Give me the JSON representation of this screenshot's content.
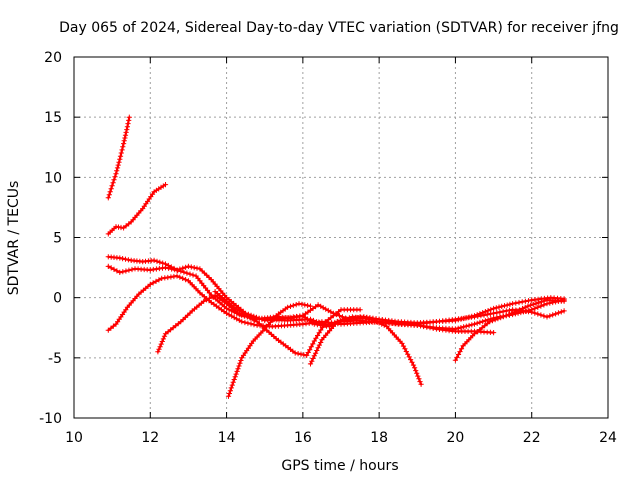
{
  "chart_data": {
    "type": "scatter",
    "title": "Day 065 of 2024, Sidereal Day-to-day VTEC variation (SDTVAR) for receiver jfng",
    "xlabel": "GPS time / hours",
    "ylabel": "SDTVAR / TECUs",
    "xlim": [
      10,
      24
    ],
    "ylim": [
      -10,
      20
    ],
    "xticks": [
      10,
      12,
      14,
      16,
      18,
      20,
      22,
      24
    ],
    "yticks": [
      -10,
      -5,
      0,
      5,
      10,
      15,
      20
    ],
    "grid": true,
    "marker": "+",
    "color": "#ff0000",
    "series": [
      {
        "name": "s1",
        "x": [
          10.9,
          11.0,
          11.1,
          11.2,
          11.3,
          11.4,
          11.45
        ],
        "y": [
          8.3,
          9.3,
          10.3,
          11.5,
          12.8,
          14.2,
          15.0
        ]
      },
      {
        "name": "s2",
        "x": [
          10.9,
          11.1,
          11.3,
          11.5,
          11.8,
          12.1,
          12.4
        ],
        "y": [
          5.3,
          5.9,
          5.8,
          6.3,
          7.4,
          8.8,
          9.4
        ]
      },
      {
        "name": "s3",
        "x": [
          10.9,
          11.2,
          11.5,
          11.8,
          12.1,
          12.4,
          12.7,
          13.0,
          13.3,
          13.6,
          14.0,
          14.5,
          15.0,
          15.5,
          16.0,
          16.4,
          16.8,
          17.2,
          17.6,
          18.0,
          18.5,
          19.0,
          19.5,
          20.0,
          20.5,
          21.0,
          21.5,
          22.0,
          22.5,
          22.85
        ],
        "y": [
          3.4,
          3.3,
          3.1,
          3.0,
          3.1,
          2.8,
          2.3,
          2.6,
          2.4,
          1.5,
          0.0,
          -1.3,
          -1.9,
          -1.7,
          -1.5,
          -0.6,
          -1.3,
          -1.8,
          -1.6,
          -1.8,
          -2.0,
          -2.1,
          -2.0,
          -1.9,
          -1.5,
          -0.9,
          -0.5,
          -0.2,
          0.0,
          -0.1
        ]
      },
      {
        "name": "s4",
        "x": [
          10.9,
          11.2,
          11.6,
          12.0,
          12.4,
          12.8,
          13.2,
          13.6,
          14.0,
          14.4,
          15.0,
          15.6,
          16.2,
          16.6,
          17.0,
          17.5,
          18.0,
          18.5,
          19.0,
          19.5,
          20.0,
          20.5,
          21.0,
          21.5,
          22.0,
          22.4,
          22.85
        ],
        "y": [
          2.6,
          2.1,
          2.4,
          2.3,
          2.5,
          2.2,
          1.8,
          0.2,
          -0.9,
          -1.5,
          -1.8,
          -1.9,
          -1.8,
          -2.3,
          -1.9,
          -1.6,
          -1.8,
          -2.1,
          -2.2,
          -2.0,
          -1.8,
          -1.6,
          -1.3,
          -1.0,
          -1.2,
          -1.6,
          -1.1
        ]
      },
      {
        "name": "s5",
        "x": [
          10.9,
          11.1,
          11.4,
          11.7,
          12.0,
          12.3,
          12.7,
          13.0,
          13.3,
          13.6,
          14.0,
          14.4,
          14.8,
          15.2,
          15.6,
          16.0,
          16.5,
          17.0,
          17.5,
          18.0,
          18.5,
          19.0,
          19.5,
          20.0,
          20.5,
          21.0,
          21.5,
          22.0,
          22.4,
          22.85
        ],
        "y": [
          -2.7,
          -2.2,
          -0.8,
          0.3,
          1.1,
          1.6,
          1.8,
          1.4,
          0.4,
          -0.4,
          -1.3,
          -2.0,
          -2.3,
          -2.4,
          -2.3,
          -2.2,
          -2.0,
          -2.2,
          -2.1,
          -2.0,
          -2.2,
          -2.3,
          -2.5,
          -2.6,
          -2.2,
          -1.7,
          -1.4,
          -1.0,
          -0.5,
          -0.2
        ]
      },
      {
        "name": "s6",
        "x": [
          12.2,
          12.4,
          12.8,
          13.1,
          13.4,
          13.7,
          14.0,
          14.3,
          14.7,
          15.0,
          15.3,
          15.7,
          16.0,
          16.3,
          16.7,
          17.0,
          17.4,
          17.8,
          18.2,
          18.6,
          19.0,
          19.5,
          20.0,
          20.5,
          21.0
        ],
        "y": [
          -4.5,
          -3.0,
          -2.0,
          -1.1,
          -0.3,
          0.2,
          -0.5,
          -1.3,
          -1.8,
          -1.7,
          -1.6,
          -1.7,
          -1.5,
          -2.2,
          -2.4,
          -2.0,
          -1.9,
          -2.0,
          -2.1,
          -2.2,
          -2.3,
          -2.6,
          -2.8,
          -2.8,
          -2.9
        ]
      },
      {
        "name": "s7",
        "x": [
          14.05,
          14.2,
          14.4,
          14.7,
          15.0,
          15.3,
          15.6,
          15.9,
          16.2
        ],
        "y": [
          -8.2,
          -6.8,
          -5.0,
          -3.6,
          -2.6,
          -1.5,
          -0.8,
          -0.5,
          -0.7
        ]
      },
      {
        "name": "s8",
        "x": [
          13.7,
          14.2,
          14.8,
          15.3,
          15.8,
          16.1,
          16.3,
          16.6,
          17.0,
          17.5
        ],
        "y": [
          0.5,
          -0.8,
          -2.0,
          -3.4,
          -4.6,
          -4.8,
          -3.6,
          -2.0,
          -1.0,
          -1.0
        ]
      },
      {
        "name": "s9",
        "x": [
          16.2,
          16.5,
          16.9,
          17.3,
          17.8,
          18.2,
          18.6,
          18.9,
          19.1
        ],
        "y": [
          -5.5,
          -3.5,
          -2.0,
          -1.6,
          -1.8,
          -2.4,
          -3.8,
          -5.6,
          -7.2
        ]
      },
      {
        "name": "s10",
        "x": [
          20.0,
          20.2,
          20.5,
          20.9,
          21.4,
          21.9,
          22.4,
          22.85
        ],
        "y": [
          -5.2,
          -4.0,
          -3.0,
          -2.0,
          -1.4,
          -0.7,
          -0.2,
          -0.3
        ]
      }
    ]
  }
}
